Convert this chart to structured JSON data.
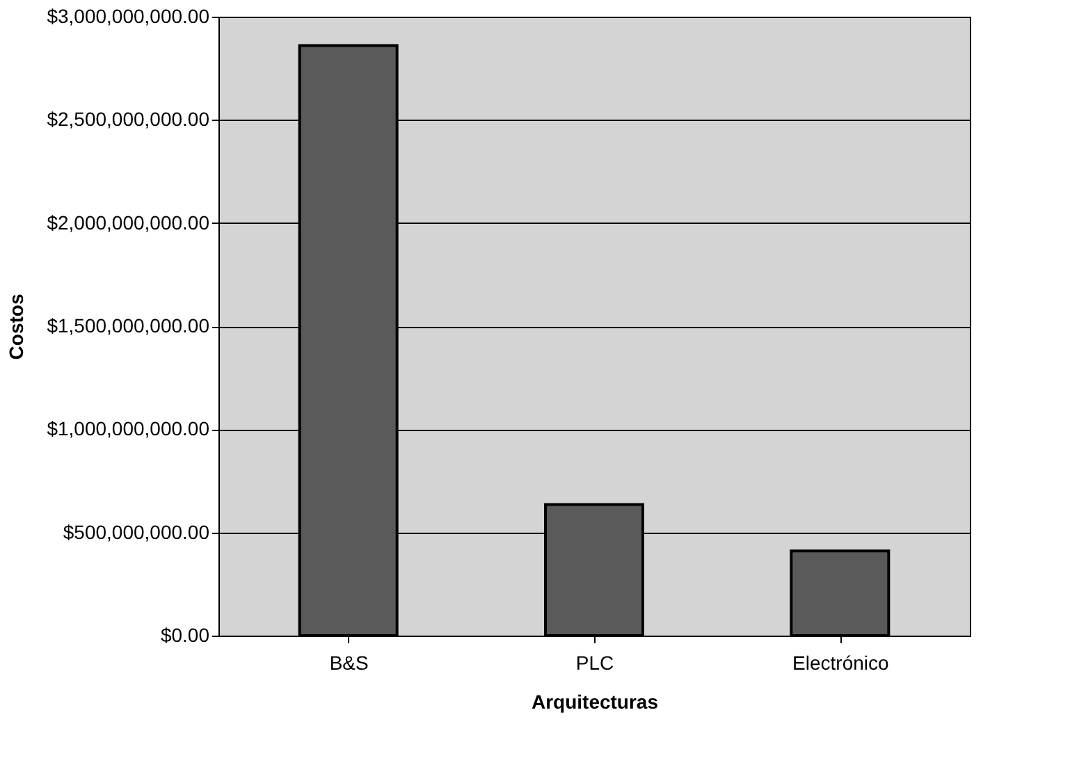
{
  "chart_data": {
    "type": "bar",
    "xlabel": "Arquitecturas",
    "ylabel": "Costos",
    "categories": [
      "B&S",
      "PLC",
      "Electrónico"
    ],
    "values": [
      2860000000,
      635000000,
      410000000
    ],
    "color": "#5a5a5a",
    "ylim": [
      0,
      3000000000
    ],
    "yticks": [
      {
        "value": 0,
        "label": "$0.00"
      },
      {
        "value": 500000000,
        "label": "$500,000,000.00"
      },
      {
        "value": 1000000000,
        "label": "$1,000,000,000.00"
      },
      {
        "value": 1500000000,
        "label": "$1,500,000,000.00"
      },
      {
        "value": 2000000000,
        "label": "$2,000,000,000.00"
      },
      {
        "value": 2500000000,
        "label": "$2,500,000,000.00"
      },
      {
        "value": 3000000000,
        "label": "$3,000,000,000.00"
      }
    ],
    "grid": "y"
  }
}
